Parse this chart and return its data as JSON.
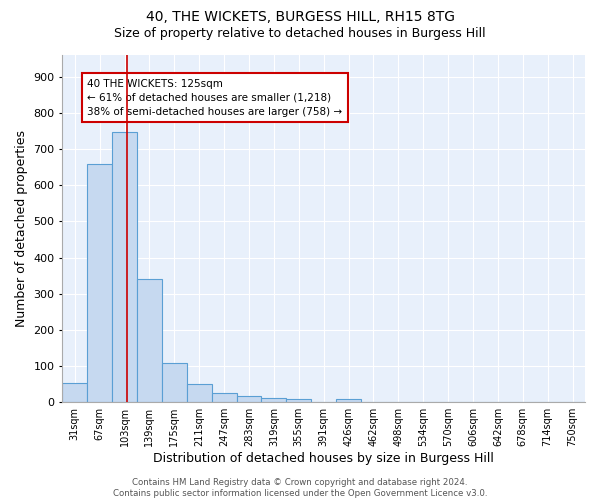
{
  "title1": "40, THE WICKETS, BURGESS HILL, RH15 8TG",
  "title2": "Size of property relative to detached houses in Burgess Hill",
  "xlabel": "Distribution of detached houses by size in Burgess Hill",
  "ylabel": "Number of detached properties",
  "bin_labels": [
    "31sqm",
    "67sqm",
    "103sqm",
    "139sqm",
    "175sqm",
    "211sqm",
    "247sqm",
    "283sqm",
    "319sqm",
    "355sqm",
    "391sqm",
    "426sqm",
    "462sqm",
    "498sqm",
    "534sqm",
    "570sqm",
    "606sqm",
    "642sqm",
    "678sqm",
    "714sqm",
    "750sqm"
  ],
  "bar_values": [
    52,
    660,
    748,
    340,
    108,
    50,
    25,
    17,
    12,
    8,
    0,
    10,
    0,
    0,
    0,
    0,
    0,
    0,
    0,
    0,
    0
  ],
  "bar_color": "#c6d9f0",
  "bar_edgecolor": "#5a9fd4",
  "bar_linewidth": 0.8,
  "marker_color": "#cc0000",
  "marker_linewidth": 1.2,
  "annotation_text": "40 THE WICKETS: 125sqm\n← 61% of detached houses are smaller (1,218)\n38% of semi-detached houses are larger (758) →",
  "annotation_box_edgecolor": "#cc0000",
  "annotation_box_facecolor": "#ffffff",
  "annotation_fontsize": 7.5,
  "ylim": [
    0,
    960
  ],
  "yticks": [
    0,
    100,
    200,
    300,
    400,
    500,
    600,
    700,
    800,
    900
  ],
  "background_color": "#dce9f8",
  "plot_bg_color": "#e8f0fb",
  "grid_color": "#ffffff",
  "footer_text": "Contains HM Land Registry data © Crown copyright and database right 2024.\nContains public sector information licensed under the Open Government Licence v3.0.",
  "title_fontsize": 10,
  "subtitle_fontsize": 9,
  "xlabel_fontsize": 9,
  "ylabel_fontsize": 9,
  "tick_fontsize": 7,
  "ytick_fontsize": 8
}
